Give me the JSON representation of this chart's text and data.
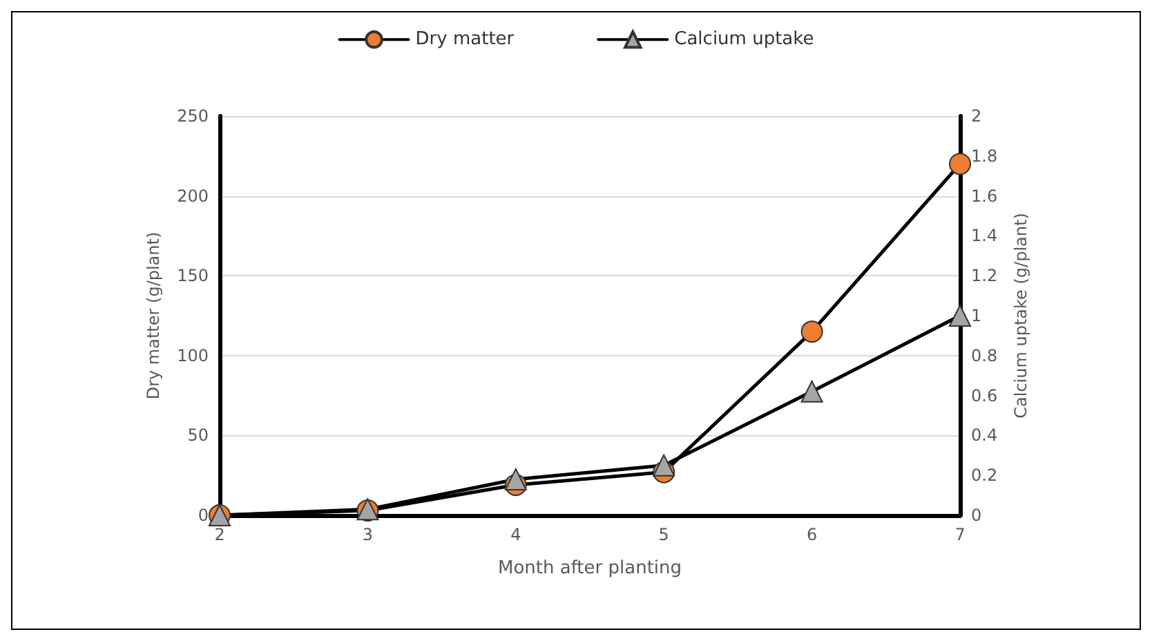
{
  "chart_data": {
    "type": "line",
    "xlabel": "Month after planting",
    "ylabel": "Dry matter (g/plant)",
    "y2label": "Calcium uptake (g/plant)",
    "categories": [
      "2",
      "3",
      "4",
      "5",
      "6",
      "7"
    ],
    "series": [
      {
        "name": "Dry matter",
        "color": "#000000",
        "marker": "circle",
        "colors": [
          "#ed7d31",
          "#ed7d31",
          "#ed7d31",
          "#ed7d31",
          "#ed7d31",
          "#ed7d31"
        ],
        "values": [
          0,
          3,
          19,
          27,
          115,
          220
        ]
      },
      {
        "name": "Calcium uptake",
        "color": "#000000",
        "marker": "triangle",
        "colors": [
          "#a5a5a5",
          "#a5a5a5",
          "#a5a5a5",
          "#a5a5a5",
          "#a5a5a5",
          "#a5a5a5"
        ],
        "axis": "y2",
        "values": [
          0,
          0.03,
          0.18,
          0.25,
          0.62,
          1.0
        ]
      }
    ],
    "ylim": [
      0,
      250
    ],
    "yticks": [
      0,
      50,
      100,
      150,
      200,
      250
    ],
    "y2lim": [
      0,
      2
    ],
    "y2ticks": [
      0,
      0.2,
      0.4,
      0.6,
      0.8,
      1,
      1.2,
      1.4,
      1.6,
      1.8,
      2
    ],
    "grid": "y",
    "legend": "top",
    "line_style": "solid"
  }
}
